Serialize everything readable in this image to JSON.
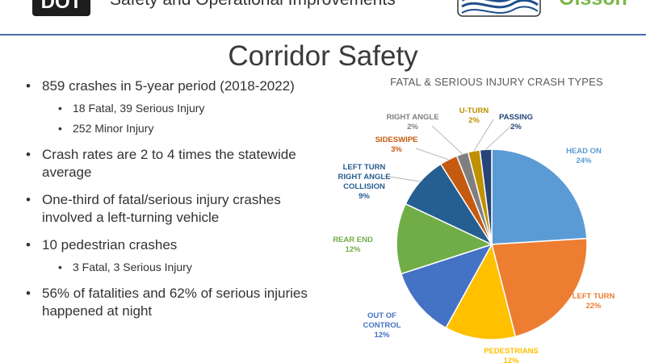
{
  "header": {
    "logo_text": "DOT",
    "title": "Safety and Operational Improvements",
    "partner_logo_text": "Olsson"
  },
  "page": {
    "title": "Corridor Safety"
  },
  "bullets": [
    {
      "text": "859 crashes in 5-year period (2018-2022)",
      "sub": [
        "18 Fatal, 39 Serious Injury",
        "252 Minor Injury"
      ]
    },
    {
      "text": "Crash rates are 2 to 4 times the statewide average",
      "sub": []
    },
    {
      "text": "One-third of fatal/serious injury crashes involved a left-turning vehicle",
      "sub": []
    },
    {
      "text": "10 pedestrian crashes",
      "sub": [
        "3 Fatal, 3 Serious Injury"
      ]
    },
    {
      "text": "56% of fatalities and 62% of serious injuries happened at night",
      "sub": []
    }
  ],
  "chart_data": {
    "type": "pie",
    "title": "FATAL & SERIOUS INJURY CRASH TYPES",
    "start": "12 o'clock, clockwise",
    "slices": [
      {
        "label": "HEAD ON",
        "value": 24,
        "pct_label": "24%",
        "color": "#5b9bd5"
      },
      {
        "label": "LEFT TURN",
        "value": 22,
        "pct_label": "22%",
        "color": "#ed7d31"
      },
      {
        "label": "PEDESTRIANS",
        "value": 12,
        "pct_label": "12%",
        "color": "#ffc000"
      },
      {
        "label": "OUT OF CONTROL",
        "value": 12,
        "pct_label": "12%",
        "color": "#4472c4"
      },
      {
        "label": "REAR END",
        "value": 12,
        "pct_label": "12%",
        "color": "#70ad47"
      },
      {
        "label": "LEFT TURN RIGHT ANGLE COLLISION",
        "value": 9,
        "pct_label": "9%",
        "color": "#255e91"
      },
      {
        "label": "SIDESWIPE",
        "value": 3,
        "pct_label": "3%",
        "color": "#c55a11"
      },
      {
        "label": "RIGHT ANGLE",
        "value": 2,
        "pct_label": "2%",
        "color": "#7f7f7f"
      },
      {
        "label": "U-TURN",
        "value": 2,
        "pct_label": "2%",
        "color": "#bf9000"
      },
      {
        "label": "PASSING",
        "value": 2,
        "pct_label": "2%",
        "color": "#264478"
      }
    ]
  }
}
